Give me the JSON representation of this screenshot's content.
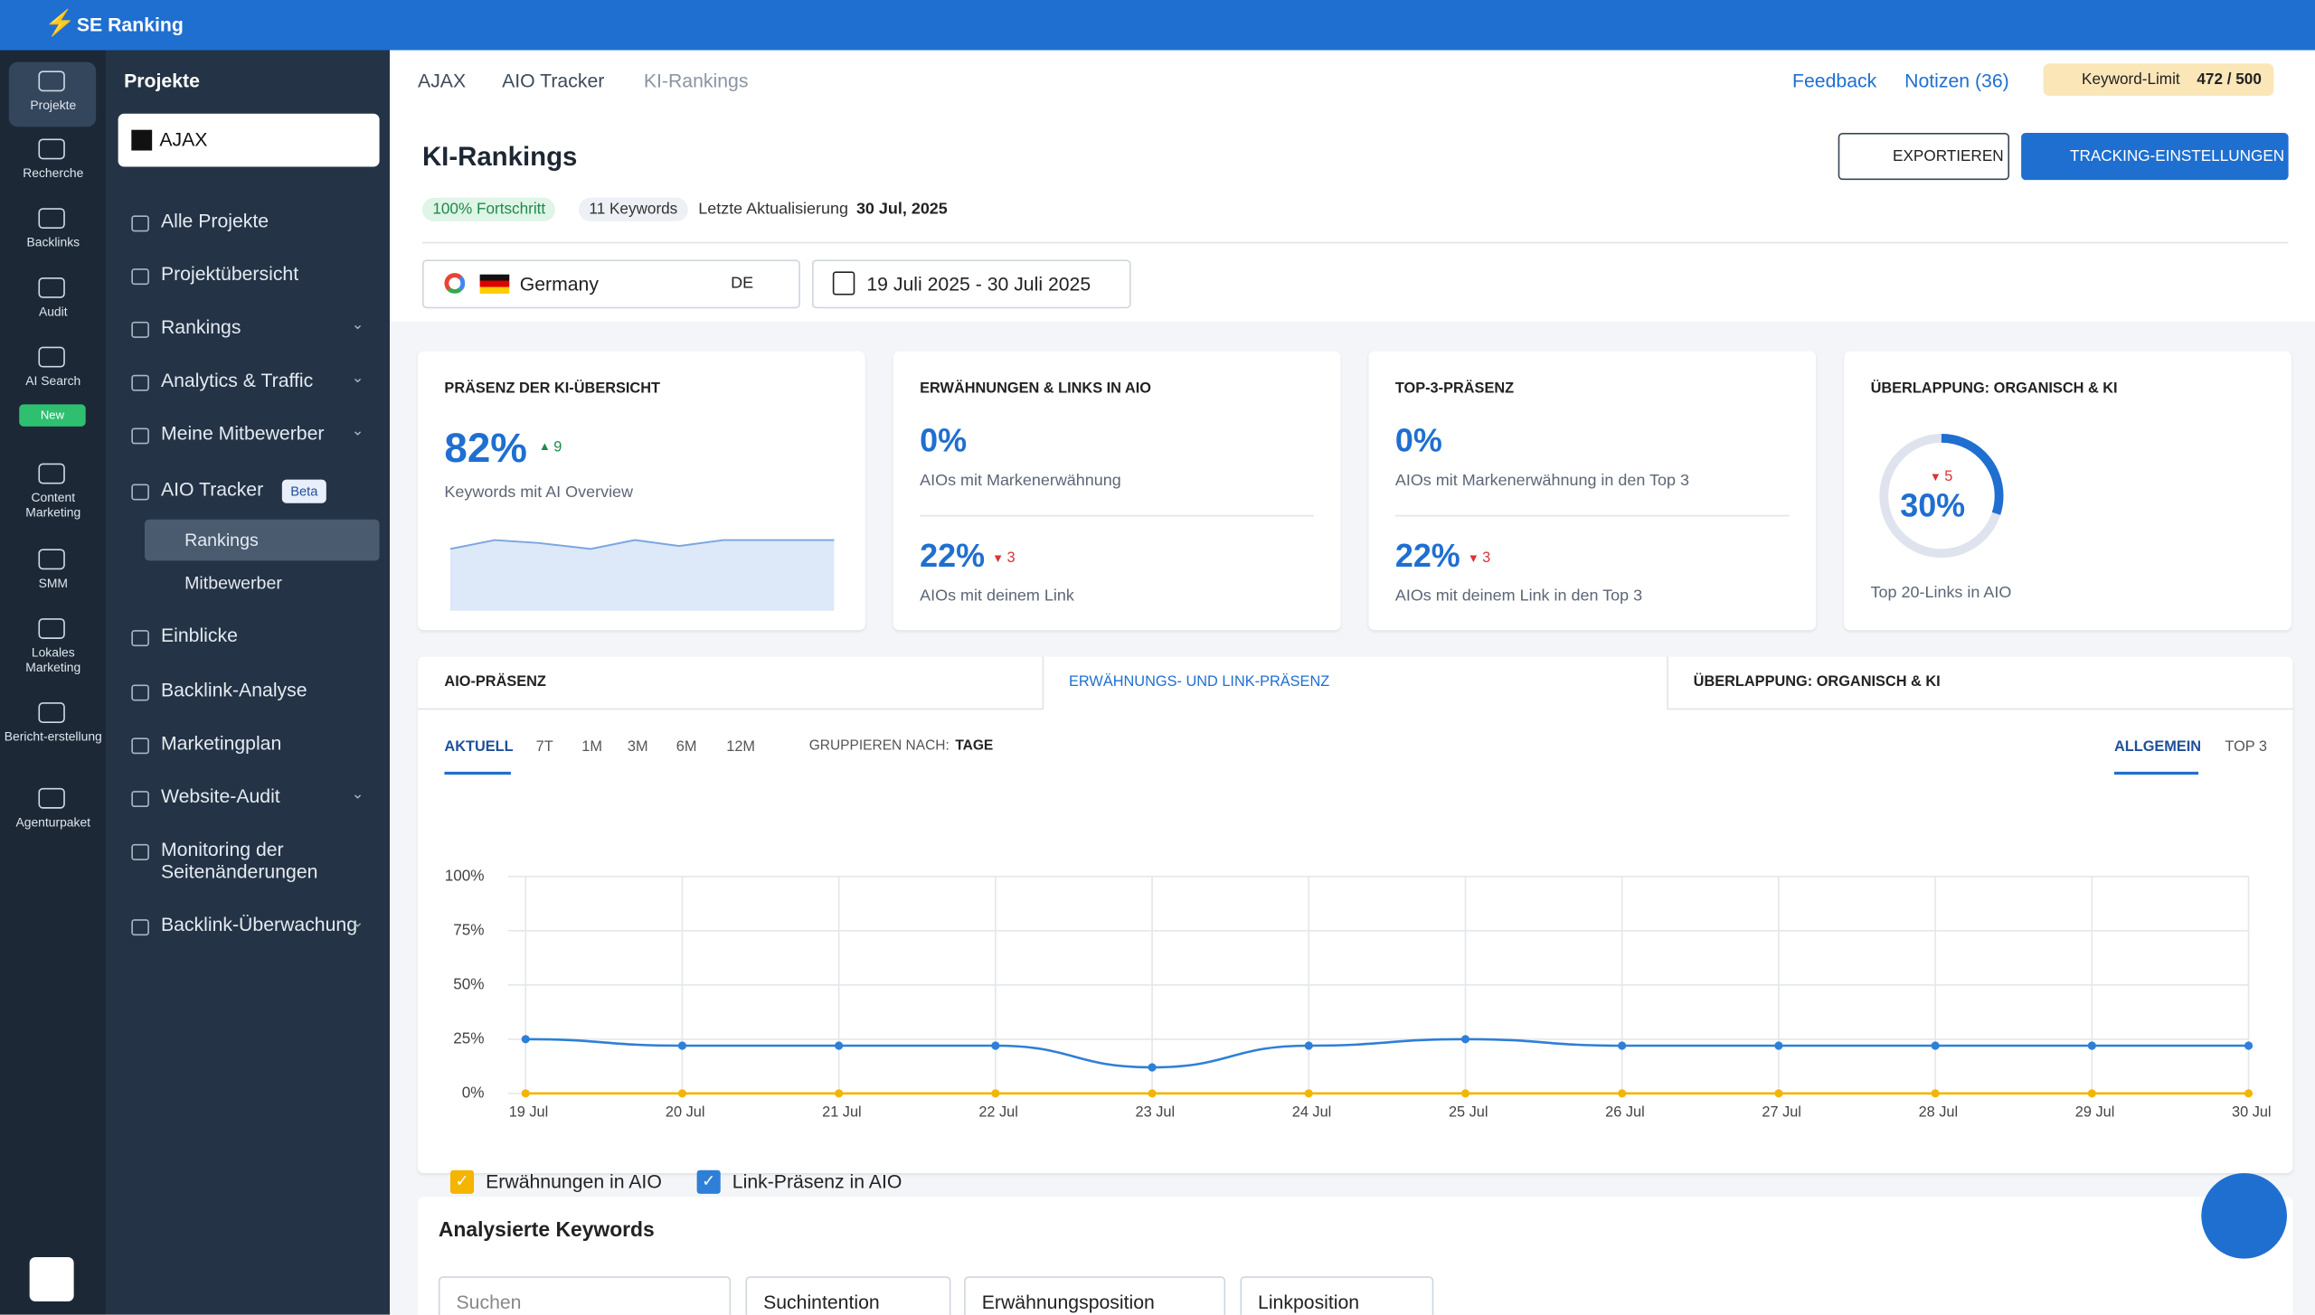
{
  "app": {
    "brand": "SE Ranking"
  },
  "rail": {
    "items": [
      "Projekte",
      "Recherche",
      "Backlinks",
      "Audit",
      "AI Search",
      "Content Marketing",
      "SMM",
      "Lokales Marketing",
      "Bericht-erstellung",
      "Agenturpaket"
    ],
    "badge": "New"
  },
  "sidebar": {
    "title": "Projekte",
    "project": "AJAX",
    "items": [
      "Alle Projekte",
      "Projektübersicht",
      "Rankings",
      "Analytics & Traffic",
      "Meine Mitbewerber",
      "AIO Tracker",
      "Einblicke",
      "Backlink-Analyse",
      "Marketingplan",
      "Website-Audit",
      "Monitoring der Seitenänderungen",
      "Backlink-Überwachung"
    ],
    "beta": "Beta",
    "subitems": [
      "Rankings",
      "Mitbewerber"
    ]
  },
  "breadcrumb": [
    "AJAX",
    "AIO Tracker",
    "KI-Rankings"
  ],
  "top_links": [
    "Feedback",
    "Notizen (36)"
  ],
  "keyword_limit": {
    "label": "Keyword-Limit",
    "value": "472 / 500"
  },
  "header": {
    "title": "KI-Rankings",
    "badges": [
      "100% Fortschritt",
      "11 Keywords"
    ],
    "updated_label": "Letzte Aktualisierung",
    "updated": "30 Jul, 2025",
    "buttons": [
      "EXPORTIEREN",
      "TRACKING-EINSTELLUNGEN"
    ]
  },
  "filters": {
    "country": "Germany",
    "code": "DE",
    "dates": "19 Juli 2025 - 30 Juli 2025"
  },
  "cards": [
    {
      "title": "PRÄSENZ DER KI-ÜBERSICHT",
      "value": "82%",
      "delta": "9",
      "caption": "Keywords mit AI Overview"
    },
    {
      "title": "ERWÄHNUNGEN & LINKS IN AIO",
      "value": "0%",
      "caption": "AIOs mit Markenerwähnung",
      "value2": "22%",
      "delta2": "3",
      "caption2": "AIOs mit deinem Link"
    },
    {
      "title": "TOP-3-PRÄSENZ",
      "value": "0%",
      "caption": "AIOs mit Markenerwähnung in den Top 3",
      "value2": "22%",
      "delta2": "3",
      "caption2": "AIOs mit deinem Link in den Top 3"
    },
    {
      "title": "ÜBERLAPPUNG: ORGANISCH & KI",
      "gauge": 30,
      "gauge_label": "30%",
      "delta": "5",
      "caption": "Top 20-Links in AIO"
    }
  ],
  "tabs": [
    "AIO-PRÄSENZ",
    "ERWÄHNUNGS- UND LINK-PRÄSENZ",
    "ÜBERLAPPUNG: ORGANISCH & KI"
  ],
  "ranges": [
    "AKTUELL",
    "7T",
    "1M",
    "3M",
    "6M",
    "12M"
  ],
  "group_label": "GRUPPIEREN NACH:",
  "group": "TAGE",
  "views": [
    "ALLGEMEIN",
    "TOP 3"
  ],
  "chart_data": {
    "type": "line",
    "categories": [
      "19 Jul",
      "20 Jul",
      "21 Jul",
      "22 Jul",
      "23 Jul",
      "24 Jul",
      "25 Jul",
      "26 Jul",
      "27 Jul",
      "28 Jul",
      "29 Jul",
      "30 Jul"
    ],
    "series": [
      {
        "name": "Erwähnungen in AIO",
        "color": "#f5b400",
        "values": [
          0,
          0,
          0,
          0,
          0,
          0,
          0,
          0,
          0,
          0,
          0,
          0
        ]
      },
      {
        "name": "Link-Präsenz in AIO",
        "color": "#2e7fd8",
        "values": [
          25,
          22,
          22,
          22,
          12,
          22,
          25,
          22,
          22,
          22,
          22,
          22
        ]
      }
    ],
    "ylim": [
      0,
      100
    ],
    "yticks": [
      {
        "value": 0,
        "label": "0%"
      },
      {
        "value": 25,
        "label": "25%"
      },
      {
        "value": 50,
        "label": "50%"
      },
      {
        "value": 75,
        "label": "75%"
      },
      {
        "value": 100,
        "label": "100%"
      }
    ],
    "grid": true
  },
  "keywords": {
    "title": "Analysierte Keywords",
    "search": "Suchen",
    "filters": [
      "Suchintention",
      "Erwähnungsposition",
      "Linkposition"
    ]
  }
}
